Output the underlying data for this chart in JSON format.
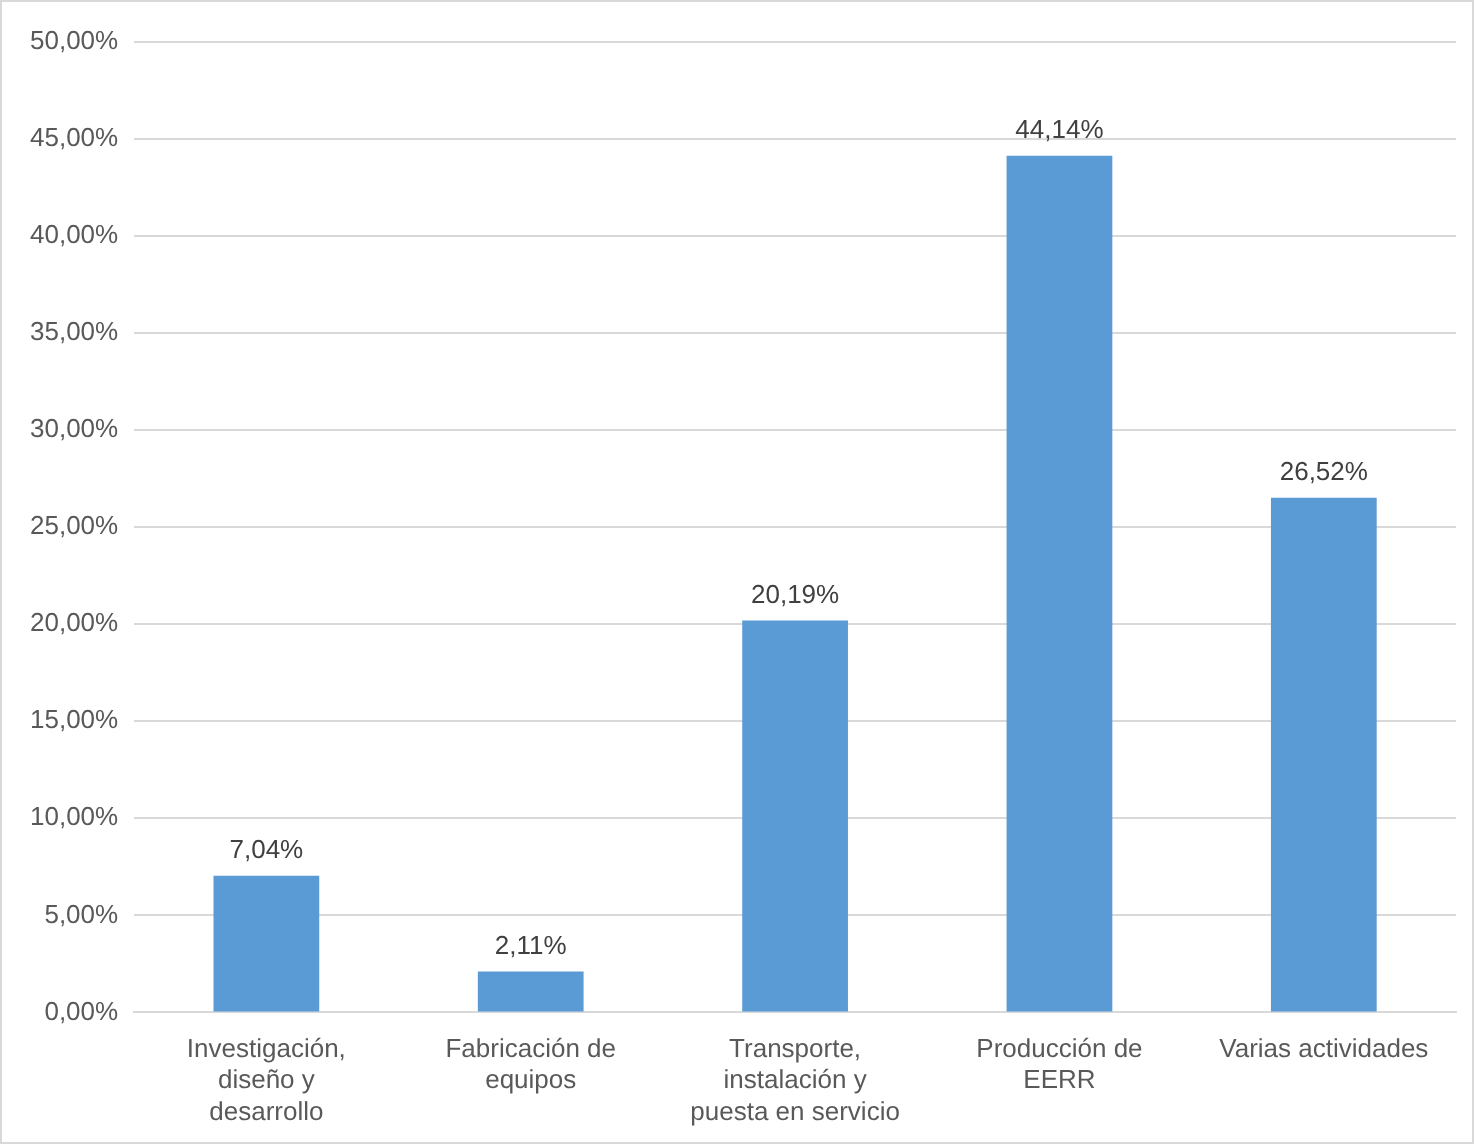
{
  "chart_data": {
    "type": "bar",
    "categories": [
      "Investigación,\ndiseño y\ndesarrollo",
      "Fabricación de\nequipos",
      "Transporte,\ninstalación y\npuesta en servicio",
      "Producción de\nEERR",
      "Varias actividades"
    ],
    "values": [
      7.04,
      2.11,
      20.19,
      44.14,
      26.52
    ],
    "value_labels": [
      "7,04%",
      "2,11%",
      "20,19%",
      "44,14%",
      "26,52%"
    ],
    "color": "#5b9bd5",
    "ylim": [
      0,
      50
    ],
    "yticks": [
      {
        "value": 0,
        "label": "0,00%"
      },
      {
        "value": 5,
        "label": "5,00%"
      },
      {
        "value": 10,
        "label": "10,00%"
      },
      {
        "value": 15,
        "label": "15,00%"
      },
      {
        "value": 20,
        "label": "20,00%"
      },
      {
        "value": 25,
        "label": "25,00%"
      },
      {
        "value": 30,
        "label": "30,00%"
      },
      {
        "value": 35,
        "label": "35,00%"
      },
      {
        "value": 40,
        "label": "40,00%"
      },
      {
        "value": 45,
        "label": "45,00%"
      },
      {
        "value": 50,
        "label": "50,00%"
      }
    ],
    "grid": "y",
    "legend": false
  }
}
